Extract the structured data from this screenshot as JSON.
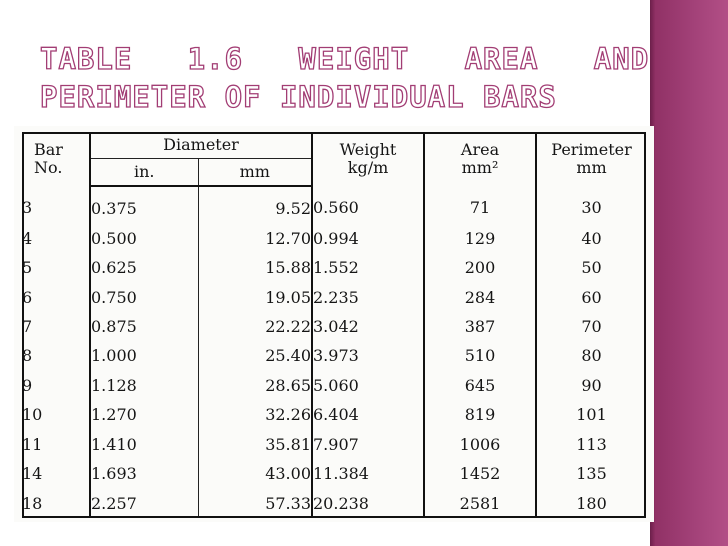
{
  "slide": {
    "title_line1": "Table   1.6   Weight   Area   and",
    "title_line2": "Perimeter of individual bars"
  },
  "table": {
    "headers": {
      "bar_no_line1": "Bar",
      "bar_no_line2": "No.",
      "diameter": "Diameter",
      "diameter_in": "in.",
      "diameter_mm": "mm",
      "weight_line1": "Weight",
      "weight_line2": "kg/m",
      "area_line1": "Area",
      "area_line2": "mm²",
      "perimeter_line1": "Perimeter",
      "perimeter_line2": "mm"
    },
    "rows": [
      {
        "bar": "3",
        "in": "0.375",
        "mm": "9.52",
        "weight": "0.560",
        "area": "71",
        "perimeter": "30"
      },
      {
        "bar": "4",
        "in": "0.500",
        "mm": "12.70",
        "weight": "0.994",
        "area": "129",
        "perimeter": "40"
      },
      {
        "bar": "5",
        "in": "0.625",
        "mm": "15.88",
        "weight": "1.552",
        "area": "200",
        "perimeter": "50"
      },
      {
        "bar": "6",
        "in": "0.750",
        "mm": "19.05",
        "weight": "2.235",
        "area": "284",
        "perimeter": "60"
      },
      {
        "bar": "7",
        "in": "0.875",
        "mm": "22.22",
        "weight": "3.042",
        "area": "387",
        "perimeter": "70"
      },
      {
        "bar": "8",
        "in": "1.000",
        "mm": "25.40",
        "weight": "3.973",
        "area": "510",
        "perimeter": "80"
      },
      {
        "bar": "9",
        "in": "1.128",
        "mm": "28.65",
        "weight": "5.060",
        "area": "645",
        "perimeter": "90"
      },
      {
        "bar": "10",
        "in": "1.270",
        "mm": "32.26",
        "weight": "6.404",
        "area": "819",
        "perimeter": "101"
      },
      {
        "bar": "11",
        "in": "1.410",
        "mm": "35.81",
        "weight": "7.907",
        "area": "1006",
        "perimeter": "113"
      },
      {
        "bar": "14",
        "in": "1.693",
        "mm": "43.00",
        "weight": "11.384",
        "area": "1452",
        "perimeter": "135"
      },
      {
        "bar": "18",
        "in": "2.257",
        "mm": "57.33",
        "weight": "20.238",
        "area": "2581",
        "perimeter": "180"
      }
    ]
  },
  "colors": {
    "sidebar": "#a24178",
    "title_outline": "#a23d74",
    "table_text": "#151515"
  }
}
